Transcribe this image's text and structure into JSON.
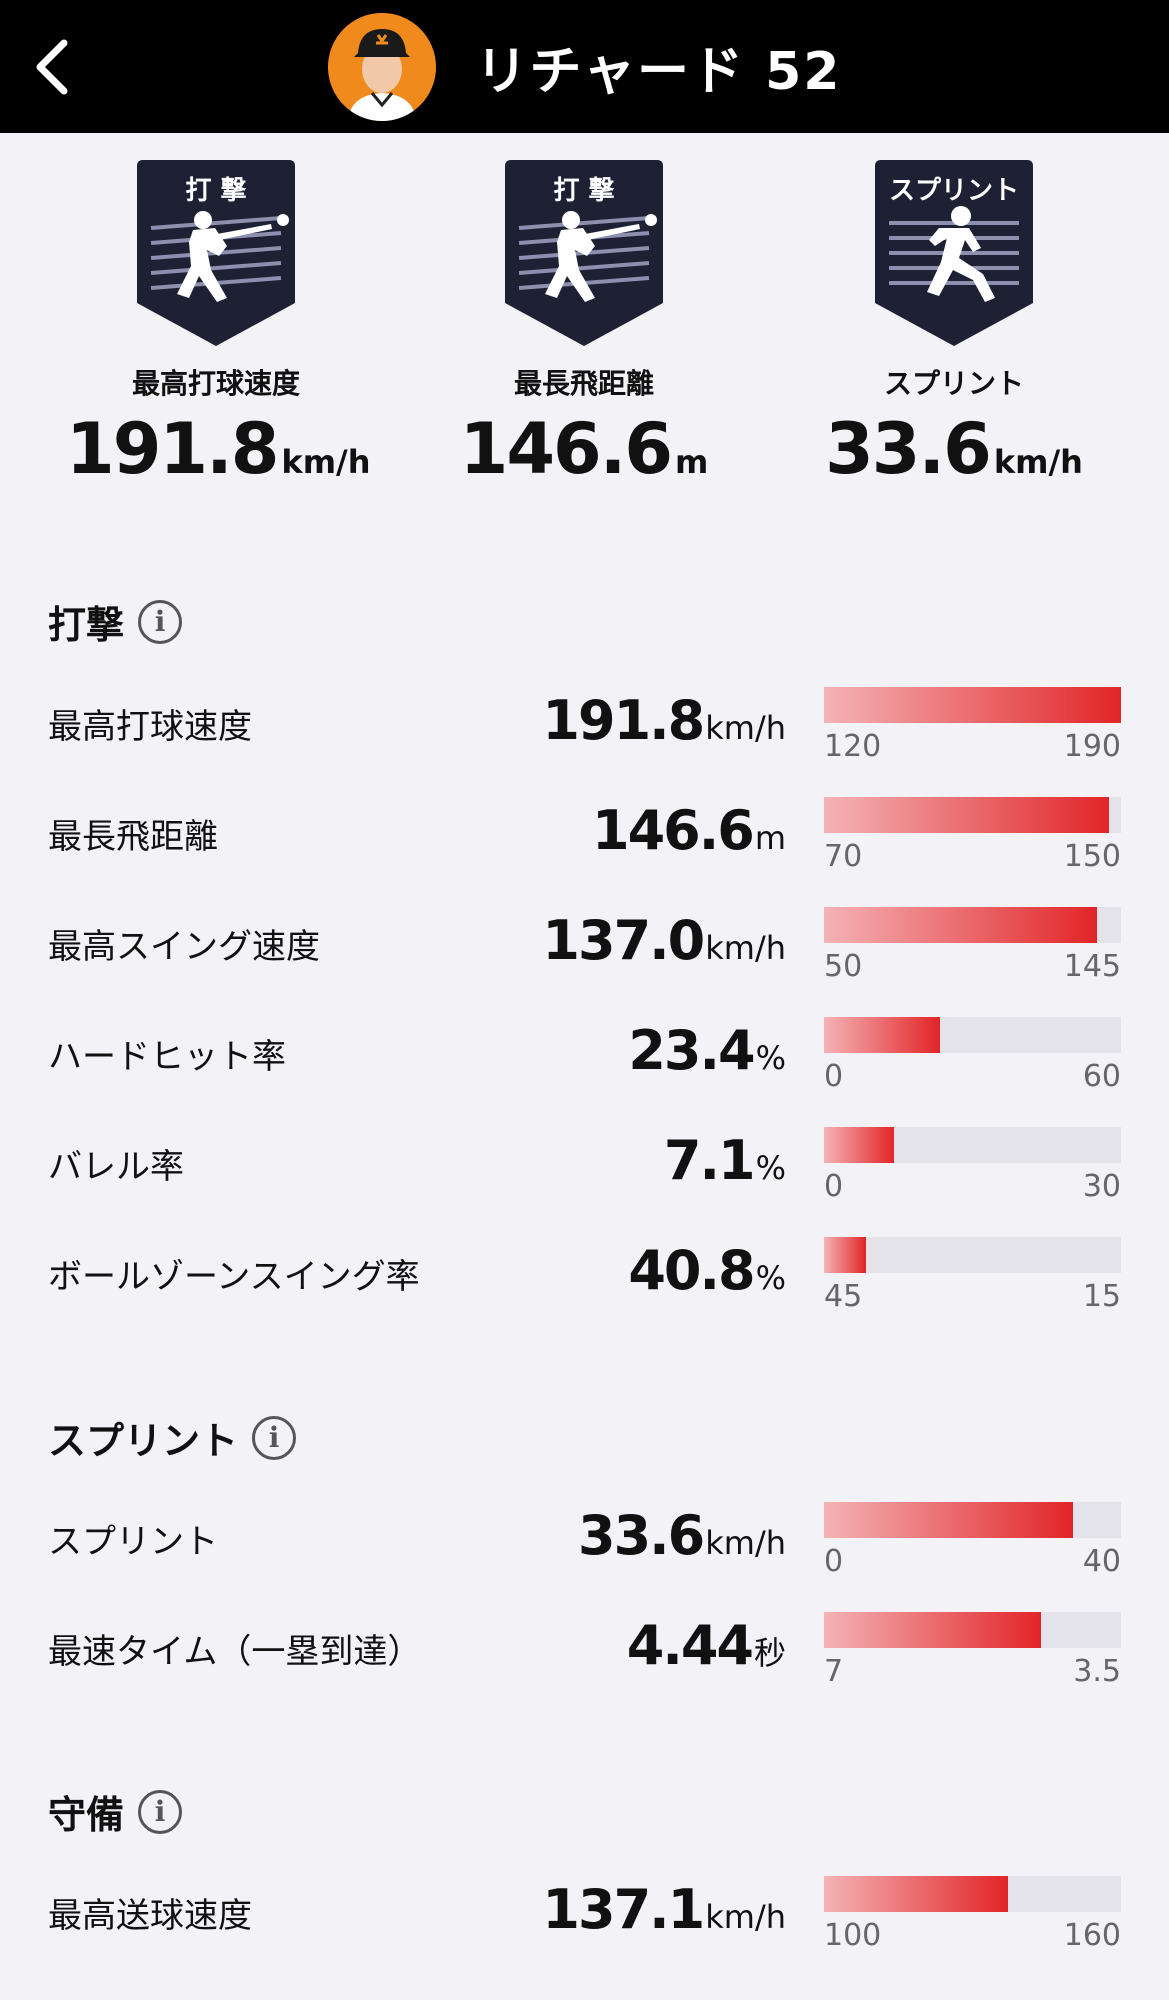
{
  "header": {
    "title": "リチャード  52"
  },
  "badges": [
    {
      "tag": "打 撃",
      "label": "最高打球速度",
      "value": "191.8",
      "unit": "km/h",
      "icon": "batter-icon"
    },
    {
      "tag": "打 撃",
      "label": "最長飛距離",
      "value": "146.6",
      "unit": "m",
      "icon": "batter-icon"
    },
    {
      "tag": "スプリント",
      "label": "スプリント",
      "value": "33.6",
      "unit": "km/h",
      "icon": "runner-icon"
    }
  ],
  "sections": {
    "batting": {
      "title": "打撃",
      "rows": [
        {
          "label": "最高打球速度",
          "value": "191.8",
          "unit": "km/h",
          "min": "120",
          "max": "190",
          "fill": 1.0
        },
        {
          "label": "最長飛距離",
          "value": "146.6",
          "unit": "m",
          "min": "70",
          "max": "150",
          "fill": 0.96
        },
        {
          "label": "最高スイング速度",
          "value": "137.0",
          "unit": "km/h",
          "min": "50",
          "max": "145",
          "fill": 0.92
        },
        {
          "label": "ハードヒット率",
          "value": "23.4",
          "unit": "%",
          "min": "0",
          "max": "60",
          "fill": 0.39
        },
        {
          "label": "バレル率",
          "value": "7.1",
          "unit": "%",
          "min": "0",
          "max": "30",
          "fill": 0.237
        },
        {
          "label": "ボールゾーンスイング率",
          "value": "40.8",
          "unit": "%",
          "min": "45",
          "max": "15",
          "fill": 0.14
        }
      ]
    },
    "sprint": {
      "title": "スプリント",
      "rows": [
        {
          "label": "スプリント",
          "value": "33.6",
          "unit": "km/h",
          "min": "0",
          "max": "40",
          "fill": 0.84
        },
        {
          "label": "最速タイム（一塁到達）",
          "value": "4.44",
          "unit": "秒",
          "min": "7",
          "max": "3.5",
          "fill": 0.73
        }
      ]
    },
    "defense": {
      "title": "守備",
      "rows": [
        {
          "label": "最高送球速度",
          "value": "137.1",
          "unit": "km/h",
          "min": "100",
          "max": "160",
          "fill": 0.62
        }
      ]
    }
  },
  "colors": {
    "header_bg": "#000000",
    "badge_dark": "#1e2033",
    "bar_start": "#f4b3b6",
    "bar_end": "#e22528",
    "avatar_bg": "#f08a1c"
  }
}
